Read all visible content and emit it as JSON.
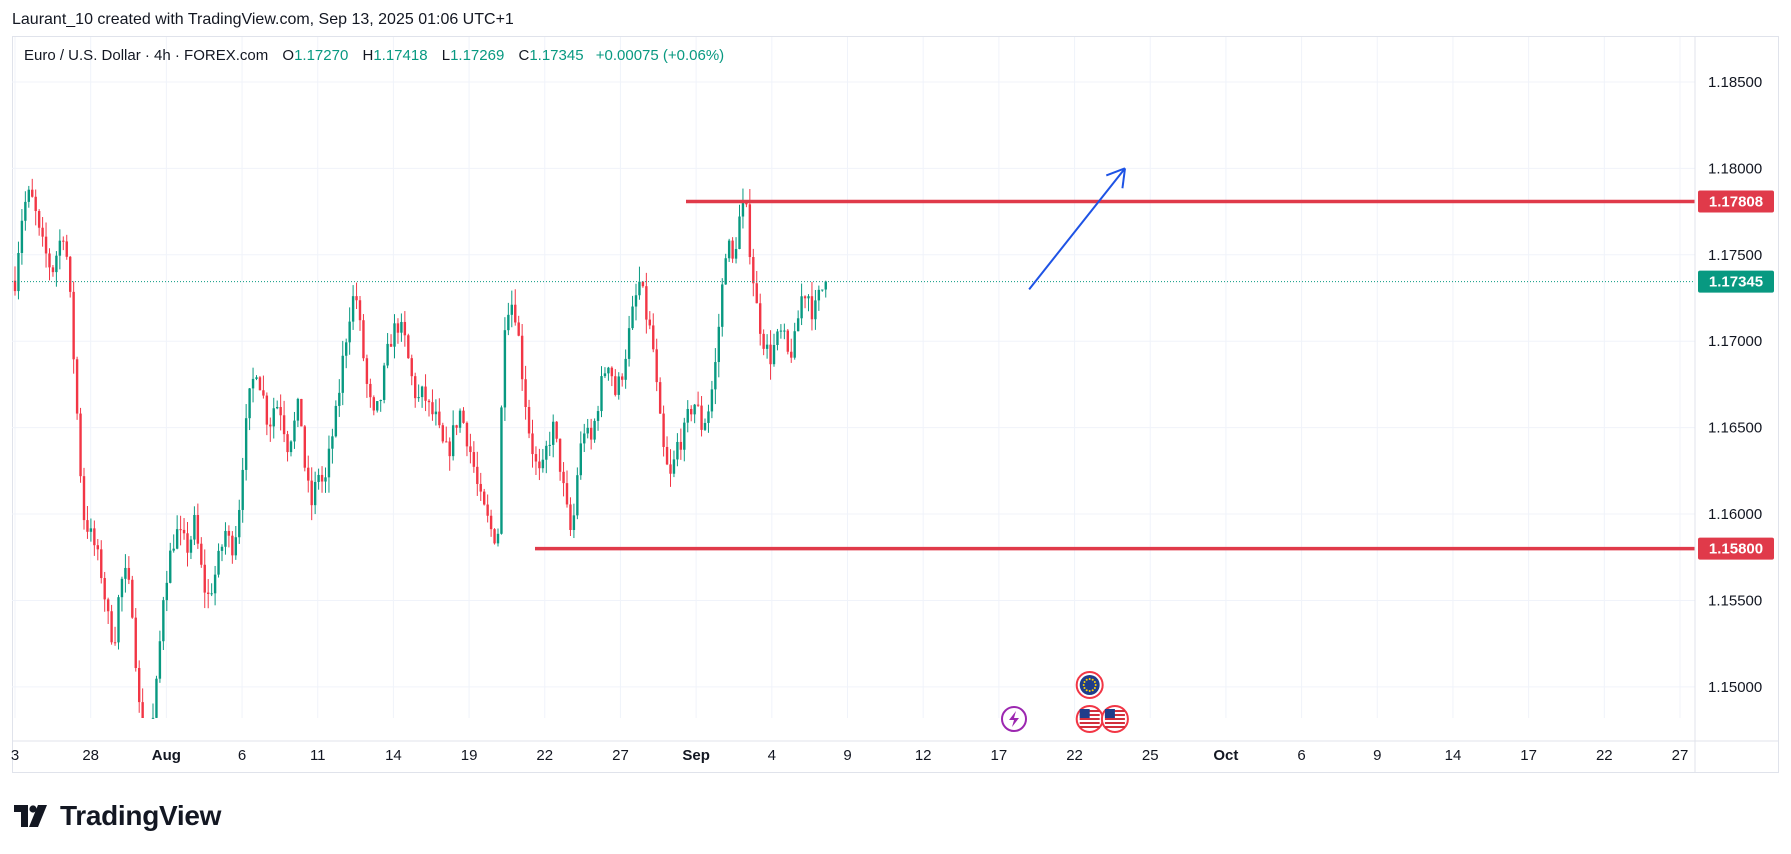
{
  "caption": "Laurant_10 created with TradingView.com, Sep 13, 2025 01:06 UTC+1",
  "legend": {
    "symbol": "Euro / U.S. Dollar · 4h · FOREX.com",
    "o_label": "O",
    "o_value": "1.17270",
    "h_label": "H",
    "h_value": "1.17418",
    "l_label": "L",
    "l_value": "1.17269",
    "c_label": "C",
    "c_value": "1.17345",
    "change": "+0.00075 (+0.06%)"
  },
  "brand": {
    "name": "TradingView",
    "icon": "tradingview-logo-icon"
  },
  "colors": {
    "up": "#089981",
    "down": "#f23645",
    "level": "#e03a4a",
    "arrow": "#1e53e5",
    "grid": "#f0f3fa"
  },
  "chart_data": {
    "type": "candlestick",
    "title": "",
    "xlabel": "",
    "ylabel": "",
    "ylim": [
      1.1482,
      1.1876
    ],
    "y_ticks": [
      "1.18500",
      "1.18000",
      "1.17500",
      "1.17000",
      "1.16500",
      "1.16000",
      "1.15500",
      "1.15000"
    ],
    "y_tick_values": [
      1.185,
      1.18,
      1.175,
      1.17,
      1.165,
      1.16,
      1.155,
      1.15
    ],
    "x_ticks": [
      "3",
      "28",
      "Aug",
      "6",
      "11",
      "14",
      "19",
      "22",
      "27",
      "Sep",
      "4",
      "9",
      "12",
      "17",
      "22",
      "25",
      "Oct",
      "6",
      "9",
      "14",
      "17",
      "22",
      "27"
    ],
    "x_tick_bold": [
      "Aug",
      "Sep",
      "Oct"
    ],
    "path_y": [
      1.1735,
      1.177,
      1.1785,
      1.178,
      1.176,
      1.175,
      1.174,
      1.1755,
      1.1765,
      1.172,
      1.166,
      1.16,
      1.159,
      1.158,
      1.1565,
      1.154,
      1.1525,
      1.156,
      1.1565,
      1.1545,
      1.149,
      1.1465,
      1.147,
      1.1505,
      1.1555,
      1.1575,
      1.159,
      1.1585,
      1.158,
      1.1595,
      1.157,
      1.155,
      1.156,
      1.1575,
      1.159,
      1.158,
      1.1595,
      1.164,
      1.167,
      1.1685,
      1.167,
      1.165,
      1.1665,
      1.166,
      1.164,
      1.165,
      1.1665,
      1.162,
      1.1605,
      1.1625,
      1.1615,
      1.164,
      1.166,
      1.169,
      1.1715,
      1.173,
      1.17,
      1.167,
      1.1655,
      1.1665,
      1.169,
      1.1705,
      1.171,
      1.17,
      1.168,
      1.1665,
      1.167,
      1.166,
      1.1655,
      1.164,
      1.1635,
      1.165,
      1.166,
      1.1645,
      1.163,
      1.161,
      1.16,
      1.159,
      1.1585,
      1.171,
      1.1725,
      1.1715,
      1.168,
      1.165,
      1.163,
      1.162,
      1.164,
      1.165,
      1.163,
      1.1605,
      1.1585,
      1.163,
      1.165,
      1.164,
      1.166,
      1.168,
      1.169,
      1.167,
      1.168,
      1.17,
      1.172,
      1.1735,
      1.1715,
      1.17,
      1.166,
      1.163,
      1.162,
      1.164,
      1.1645,
      1.166,
      1.1665,
      1.165,
      1.166,
      1.168,
      1.172,
      1.176,
      1.1745,
      1.177,
      1.178,
      1.1745,
      1.1715,
      1.17,
      1.169,
      1.17,
      1.1705,
      1.169,
      1.17,
      1.1725,
      1.173,
      1.1715,
      1.1727,
      1.17345
    ],
    "price_line": 1.17345,
    "price_tag": "1.17345",
    "levels": [
      {
        "value": 1.17808,
        "label": "1.17808",
        "x_start_label": "Aug 30"
      },
      {
        "value": 1.158,
        "label": "1.15800",
        "x_start_label": "Aug 21"
      }
    ],
    "arrow": {
      "from": [
        13.2,
        1.173
      ],
      "to": [
        17.0,
        1.18
      ]
    },
    "events": [
      {
        "icon": "eu-flag-icon",
        "row": "top",
        "x": 15.6
      },
      {
        "icon": "lightning-icon",
        "row": "bottom",
        "x": 12.6
      },
      {
        "icon": "us-flag-icon",
        "row": "bottom",
        "x": 15.6
      },
      {
        "icon": "us-flag-icon",
        "row": "bottom",
        "x": 16.6
      }
    ]
  }
}
